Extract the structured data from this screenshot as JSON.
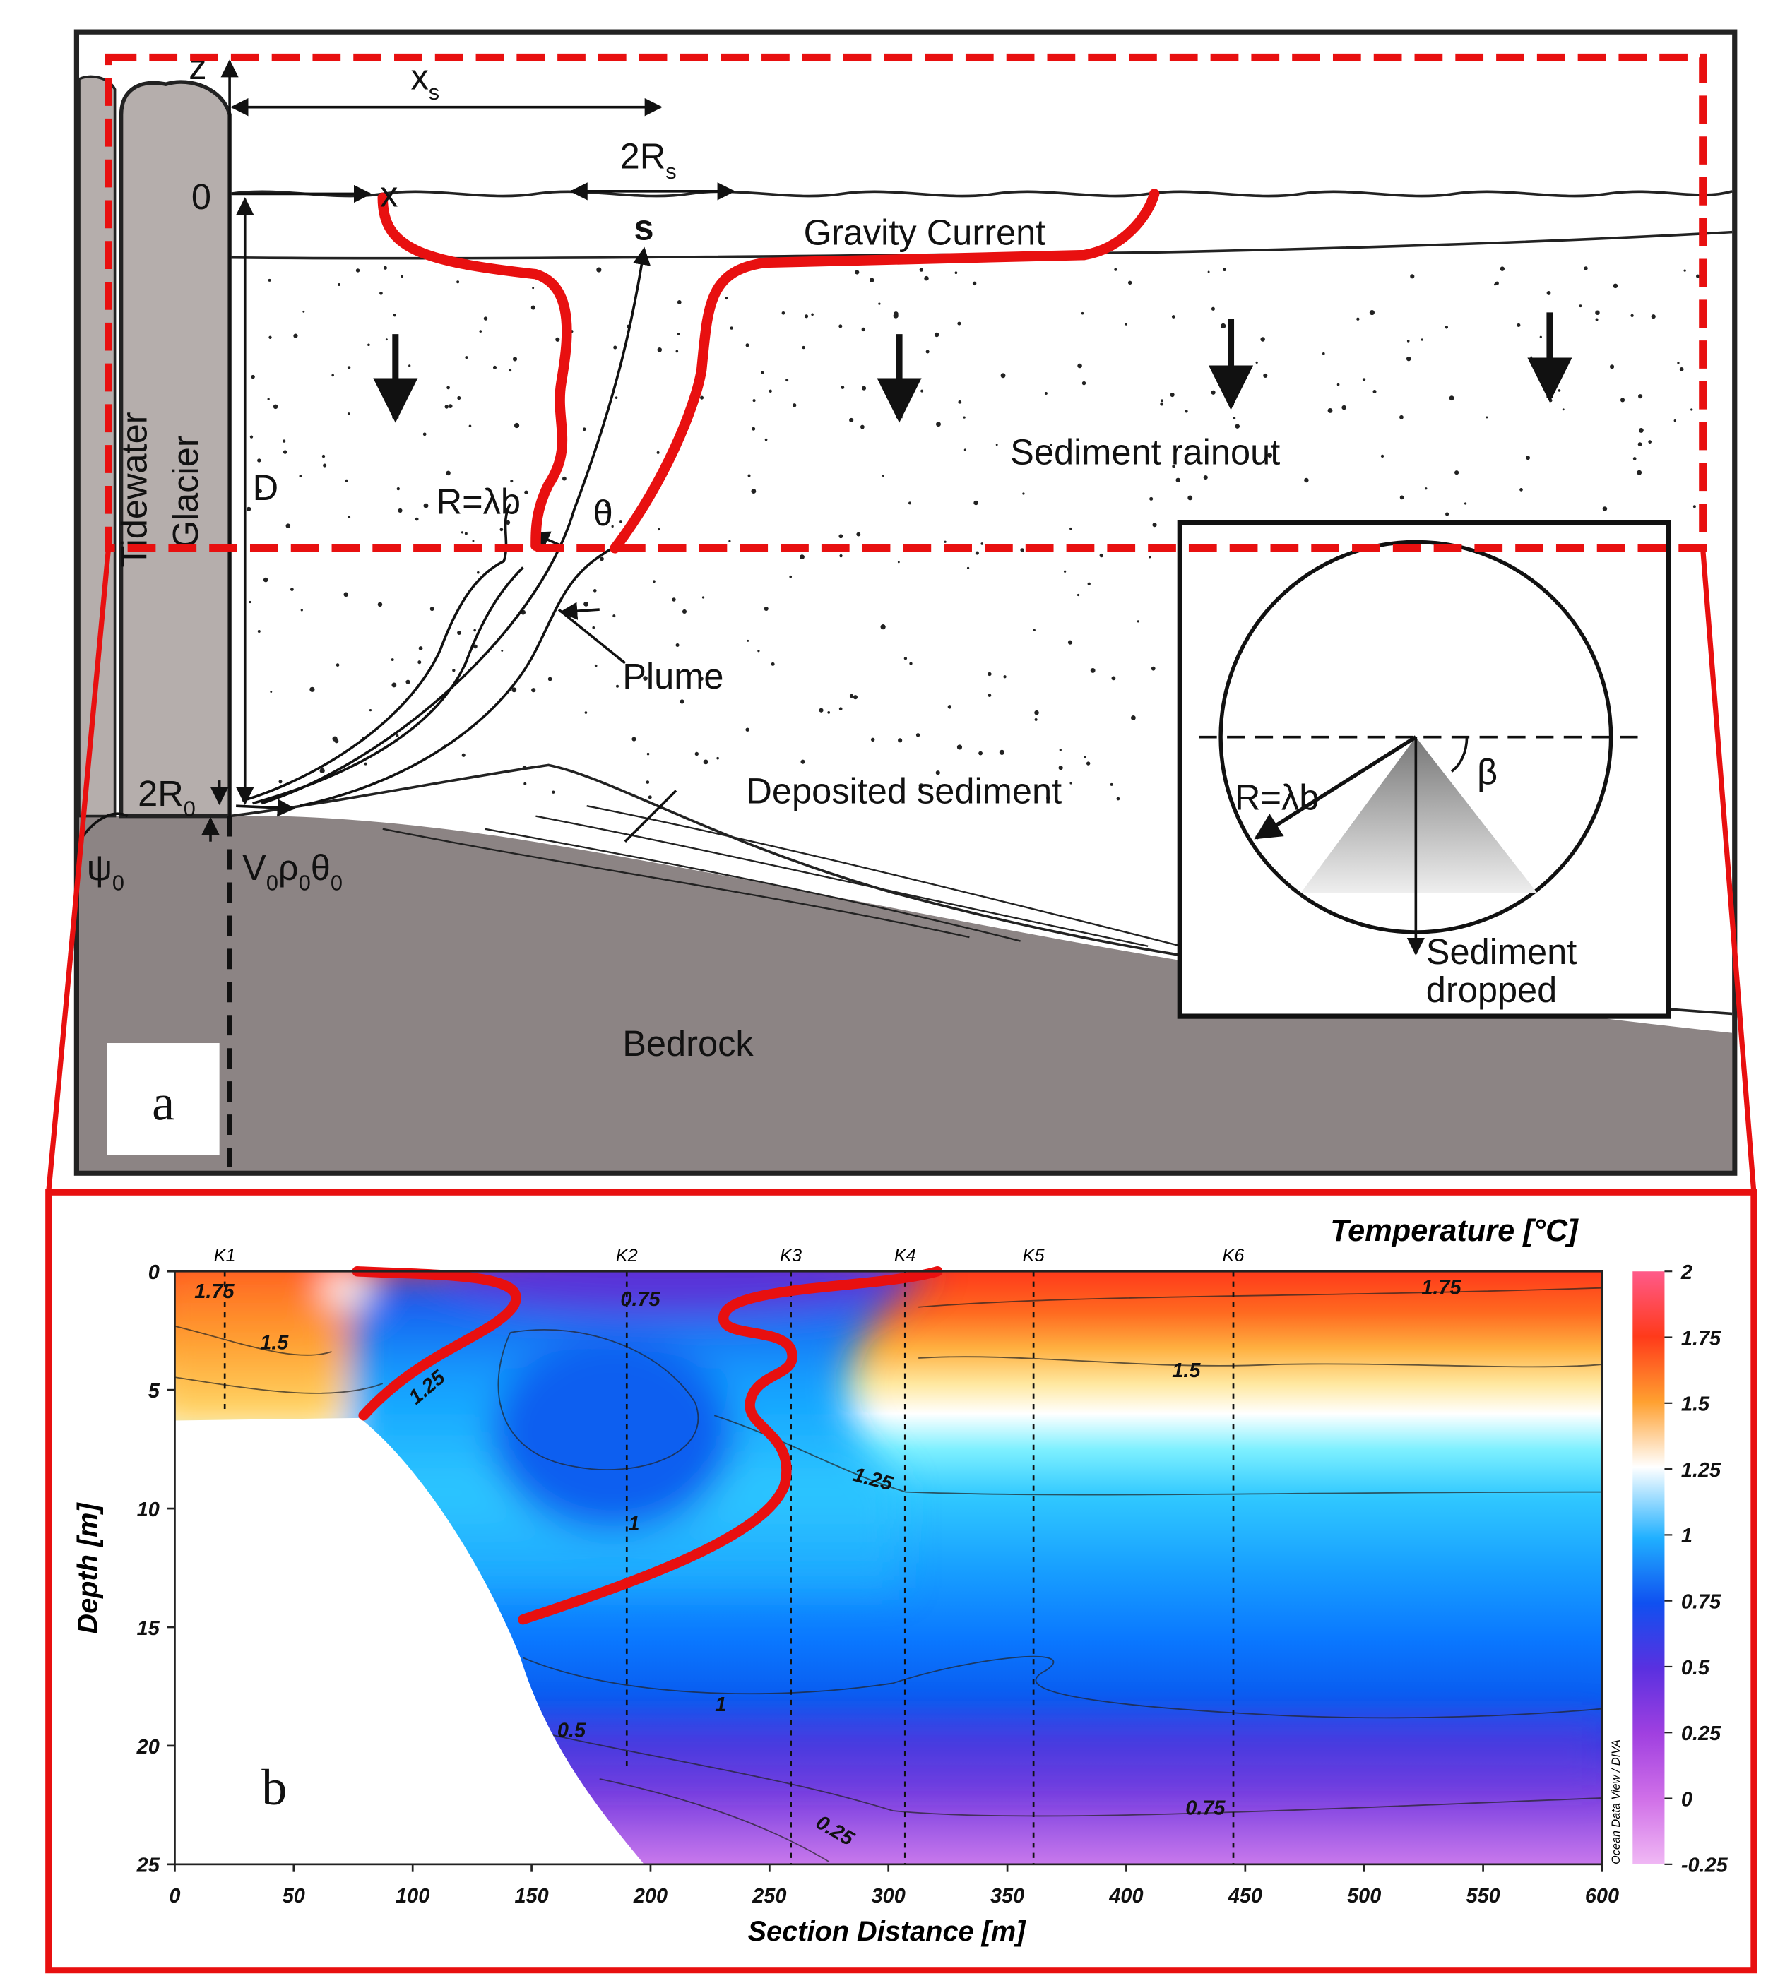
{
  "panel_a": {
    "label": "a",
    "glacier": [
      "Tidewater",
      "Glacier"
    ],
    "z": "z",
    "zero": "0",
    "xs": {
      "base": "x",
      "sub": "s"
    },
    "x": "x",
    "two_rs": {
      "base": "2R",
      "sub": "s"
    },
    "s": "s",
    "gravity_current": "Gravity Current",
    "sediment_rainout": "Sediment rainout",
    "D": "D",
    "r_lambda_b": "R=λb",
    "theta": "θ",
    "plume": "Plume",
    "deposited_sediment": "Deposited sediment",
    "two_r0": {
      "base": "2R",
      "sub": "0"
    },
    "psi0": {
      "base": "ψ",
      "sub": "0"
    },
    "v0": [
      {
        "base": "V",
        "sub": "0"
      },
      {
        "base": "ρ",
        "sub": "0"
      },
      {
        "base": "θ",
        "sub": "0"
      }
    ],
    "bedrock": "Bedrock",
    "inset": {
      "r_lambda_b": "R=λb",
      "beta": "β",
      "sediment_dropped": [
        "Sediment",
        "dropped"
      ]
    }
  },
  "panel_b": {
    "label": "b",
    "title": "Temperature [°C]",
    "xlabel": "Section Distance [m]",
    "ylabel": "Depth [m]",
    "xlim": [
      0,
      600
    ],
    "ylim": [
      0,
      25
    ],
    "xticks": [
      0,
      50,
      100,
      150,
      200,
      250,
      300,
      350,
      400,
      450,
      500,
      550,
      600
    ],
    "yticks": [
      0,
      5,
      10,
      15,
      20,
      25
    ],
    "stations": [
      {
        "name": "K1",
        "x": 21,
        "depth": 5.8
      },
      {
        "name": "K2",
        "x": 190,
        "depth": 21
      },
      {
        "name": "K3",
        "x": 259,
        "depth": 25
      },
      {
        "name": "K4",
        "x": 307,
        "depth": 25
      },
      {
        "name": "K5",
        "x": 361,
        "depth": 25
      },
      {
        "name": "K6",
        "x": 445,
        "depth": 25
      }
    ],
    "contour_labels": [
      "1.75",
      "1.5",
      "1.25",
      "0.75",
      "1.25",
      "1",
      "1.5",
      "1.75",
      "1",
      "0.5",
      "0.25",
      "0.75"
    ],
    "colorbar": {
      "lim": [
        -0.25,
        2
      ],
      "ticks": [
        2,
        1.75,
        1.5,
        1.25,
        1,
        0.75,
        0.5,
        0.25,
        0,
        -0.25
      ]
    },
    "credit": "Ocean Data View / DIVA"
  }
}
